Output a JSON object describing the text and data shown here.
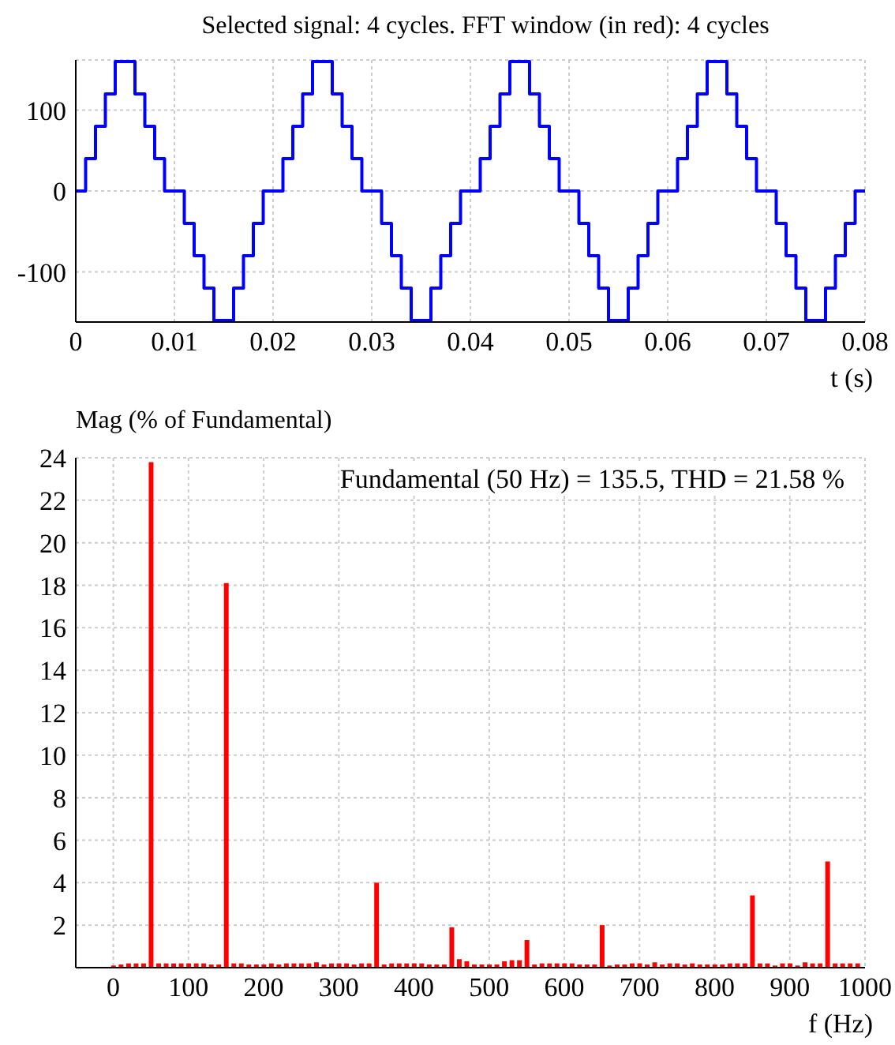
{
  "chart_data": [
    {
      "type": "step",
      "title": "Selected signal: 4 cycles. FFT window (in red): 4 cycles",
      "xlabel": "t (s)",
      "x": [
        0,
        0.001,
        0.002,
        0.003,
        0.004,
        0.005,
        0.006,
        0.007,
        0.008,
        0.009,
        0.01,
        0.011,
        0.012,
        0.013,
        0.014,
        0.015,
        0.016,
        0.017,
        0.018,
        0.019,
        0.02,
        0.021,
        0.022,
        0.023,
        0.024,
        0.025,
        0.026,
        0.027,
        0.028,
        0.029,
        0.03,
        0.031,
        0.032,
        0.033,
        0.034,
        0.035,
        0.036,
        0.037,
        0.038,
        0.039,
        0.04,
        0.041,
        0.042,
        0.043,
        0.044,
        0.045,
        0.046,
        0.047,
        0.048,
        0.049,
        0.05,
        0.051,
        0.052,
        0.053,
        0.054,
        0.055,
        0.056,
        0.057,
        0.058,
        0.059,
        0.06,
        0.061,
        0.062,
        0.063,
        0.064,
        0.065,
        0.066,
        0.067,
        0.068,
        0.069,
        0.07,
        0.071,
        0.072,
        0.073,
        0.074,
        0.075,
        0.076,
        0.077,
        0.078,
        0.079,
        0.08
      ],
      "series": [
        {
          "color": "#0000ff",
          "values": [
            0,
            40,
            80,
            120,
            160,
            160,
            120,
            80,
            40,
            0,
            0,
            -40,
            -80,
            -120,
            -160,
            -160,
            -120,
            -80,
            -40,
            0,
            0,
            40,
            80,
            120,
            160,
            160,
            120,
            80,
            40,
            0,
            0,
            -40,
            -80,
            -120,
            -160,
            -160,
            -120,
            -80,
            -40,
            0,
            0,
            40,
            80,
            120,
            160,
            160,
            120,
            80,
            40,
            0,
            0,
            -40,
            -80,
            -120,
            -160,
            -160,
            -120,
            -80,
            -40,
            0,
            0,
            40,
            80,
            120,
            160,
            160,
            120,
            80,
            40,
            0,
            0,
            -40,
            -80,
            -120,
            -160,
            -160,
            -120,
            -80,
            -40,
            0,
            0
          ]
        }
      ],
      "xlim": [
        0,
        0.08
      ],
      "xticks": [
        0,
        0.01,
        0.02,
        0.03,
        0.04,
        0.05,
        0.06,
        0.07,
        0.08
      ],
      "ylim": [
        -162,
        162
      ],
      "yticks": [
        -100,
        0,
        100
      ],
      "grid": true
    },
    {
      "type": "bar",
      "ylabel": "Mag (% of Fundamental)",
      "xlabel": "f (Hz)",
      "annotations": [
        "Fundamental (50 Hz) = 135.5, THD = 21.58 %"
      ],
      "x": [
        0,
        10,
        20,
        30,
        40,
        50,
        60,
        70,
        80,
        90,
        100,
        110,
        120,
        130,
        140,
        150,
        160,
        170,
        180,
        190,
        200,
        210,
        220,
        230,
        240,
        250,
        260,
        270,
        280,
        290,
        300,
        310,
        320,
        330,
        340,
        350,
        360,
        370,
        380,
        390,
        400,
        410,
        420,
        430,
        440,
        450,
        460,
        470,
        480,
        490,
        500,
        510,
        520,
        530,
        540,
        550,
        560,
        570,
        580,
        590,
        600,
        610,
        620,
        630,
        640,
        650,
        660,
        670,
        680,
        690,
        700,
        710,
        720,
        730,
        740,
        750,
        760,
        770,
        780,
        790,
        800,
        810,
        820,
        830,
        840,
        850,
        860,
        870,
        880,
        890,
        900,
        910,
        920,
        930,
        940,
        950,
        960,
        970,
        980,
        990
      ],
      "series": [
        {
          "color": "#ff0000",
          "values": [
            0.1,
            0.15,
            0.2,
            0.2,
            0.2,
            23.8,
            0.2,
            0.2,
            0.2,
            0.2,
            0.2,
            0.2,
            0.2,
            0.15,
            0.15,
            18.1,
            0.2,
            0.2,
            0.15,
            0.15,
            0.15,
            0.2,
            0.15,
            0.2,
            0.2,
            0.2,
            0.2,
            0.25,
            0.15,
            0.2,
            0.2,
            0.2,
            0.15,
            0.2,
            0.2,
            4.0,
            0.15,
            0.2,
            0.2,
            0.2,
            0.2,
            0.2,
            0.15,
            0.15,
            0.15,
            1.9,
            0.4,
            0.3,
            0.15,
            0.15,
            0.15,
            0.15,
            0.3,
            0.35,
            0.35,
            1.3,
            0.15,
            0.2,
            0.2,
            0.2,
            0.2,
            0.2,
            0.15,
            0.15,
            0.15,
            2.0,
            0.1,
            0.15,
            0.15,
            0.2,
            0.2,
            0.15,
            0.25,
            0.15,
            0.2,
            0.2,
            0.15,
            0.2,
            0.15,
            0.15,
            0.15,
            0.15,
            0.2,
            0.2,
            0.2,
            3.4,
            0.2,
            0.2,
            0.1,
            0.2,
            0.2,
            0.1,
            0.25,
            0.2,
            0.2,
            5.0,
            0.2,
            0.2,
            0.2,
            0.2
          ]
        }
      ],
      "xlim": [
        -50,
        1000
      ],
      "xticks": [
        0,
        100,
        200,
        300,
        400,
        500,
        600,
        700,
        800,
        900,
        1000
      ],
      "ylim": [
        0,
        24
      ],
      "yticks": [
        2,
        4,
        6,
        8,
        10,
        12,
        14,
        16,
        18,
        20,
        22,
        24
      ],
      "grid": true
    }
  ]
}
